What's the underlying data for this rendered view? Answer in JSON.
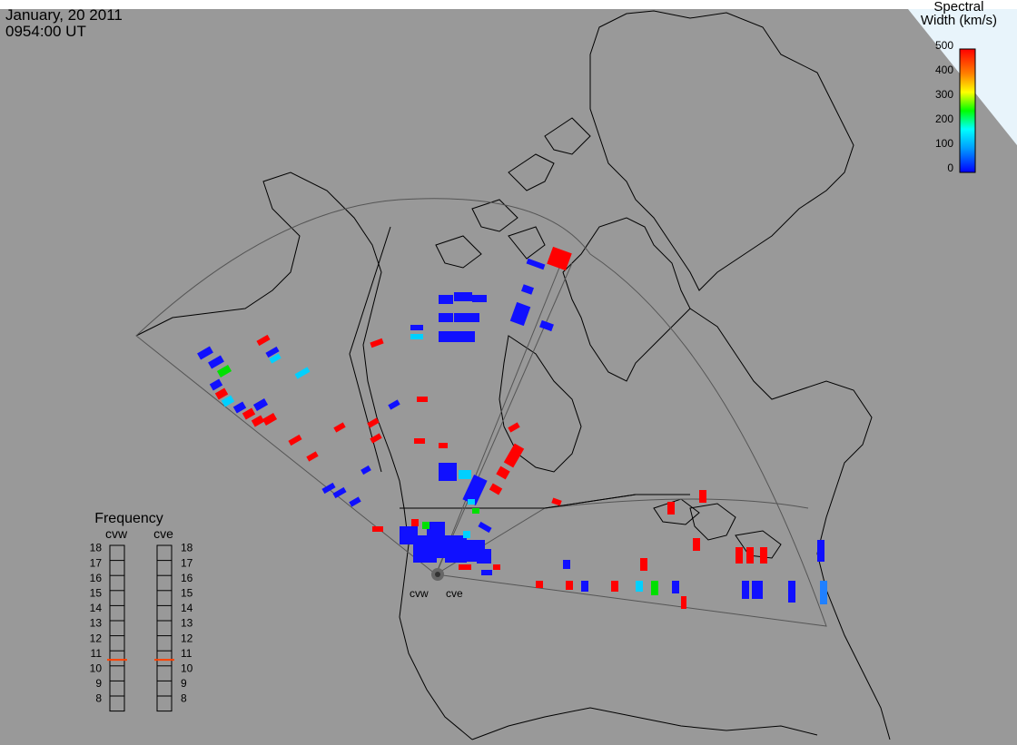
{
  "header": {
    "date": "January, 20 2011",
    "time": "0954:00 UT"
  },
  "colorbar": {
    "title_line1": "Spectral",
    "title_line2": "Width (km/s)",
    "ticks": [
      "500",
      "400",
      "300",
      "200",
      "100",
      "0"
    ],
    "range": [
      0,
      500
    ],
    "colors": [
      "#ff0000",
      "#ff8000",
      "#ffff00",
      "#00ff00",
      "#00ffff",
      "#0000ff"
    ]
  },
  "frequency_panel": {
    "title": "Frequency",
    "radars": [
      "cvw",
      "cve"
    ],
    "levels": [
      "18",
      "17",
      "16",
      "15",
      "14",
      "13",
      "12",
      "11",
      "10",
      "9",
      "8"
    ],
    "indicator_color": "#ff4000",
    "cvw_value_mhz": 10.9,
    "cve_value_mhz": 10.9
  },
  "map": {
    "land_color": "#999999",
    "ocean_color": "#e8f4fb",
    "coast_color": "#000000",
    "fov_color": "#555555",
    "radar_labels": [
      "cvw",
      "cve"
    ]
  }
}
